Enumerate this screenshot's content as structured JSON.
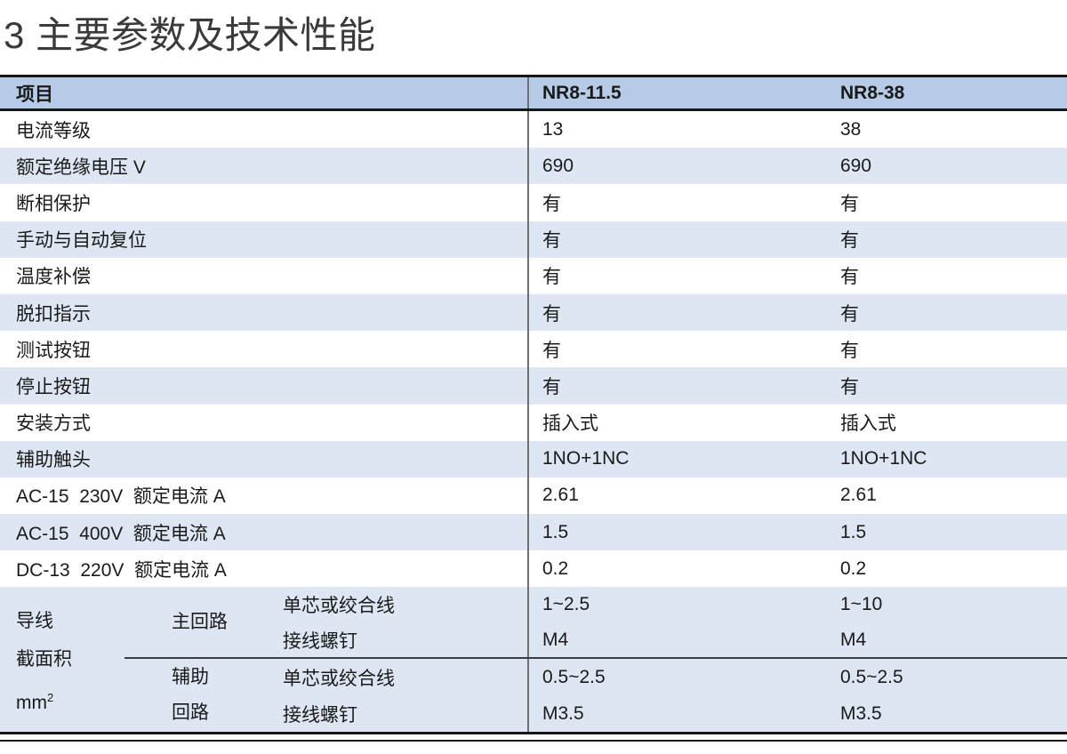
{
  "page": {
    "title": "3 主要参数及技术性能"
  },
  "table": {
    "header": {
      "item": "项目",
      "col1": "NR8-11.5",
      "col2": "NR8-38"
    },
    "rows": [
      {
        "label": "电流等级",
        "v1": "13",
        "v2": "38"
      },
      {
        "label": "额定绝缘电压 V",
        "v1": "690",
        "v2": "690"
      },
      {
        "label": "断相保护",
        "v1": "有",
        "v2": "有"
      },
      {
        "label": "手动与自动复位",
        "v1": "有",
        "v2": "有"
      },
      {
        "label": "温度补偿",
        "v1": "有",
        "v2": "有"
      },
      {
        "label": "脱扣指示",
        "v1": "有",
        "v2": "有"
      },
      {
        "label": "测试按钮",
        "v1": "有",
        "v2": "有"
      },
      {
        "label": "停止按钮",
        "v1": "有",
        "v2": "有"
      },
      {
        "label": "安装方式",
        "v1": "插入式",
        "v2": "插入式"
      },
      {
        "label": "辅助触头",
        "v1": "1NO+1NC",
        "v2": "1NO+1NC"
      },
      {
        "label": "AC-15  230V  额定电流 A",
        "v1": "2.61",
        "v2": "2.61"
      },
      {
        "label": "AC-15  400V  额定电流 A",
        "v1": "1.5",
        "v2": "1.5"
      },
      {
        "label": "DC-13  220V  额定电流 A",
        "v1": "0.2",
        "v2": "0.2"
      }
    ],
    "wire": {
      "label_line1": "导线",
      "label_line2": "截面积",
      "unit_base": "mm",
      "unit_sup": "2",
      "groups": [
        {
          "circuit_line1": "主回路",
          "circuit_line2": "",
          "rows": [
            {
              "label": "单芯或绞合线",
              "v1": "1~2.5",
              "v2": "1~10"
            },
            {
              "label": "接线螺钉",
              "v1": "M4",
              "v2": "M4"
            }
          ]
        },
        {
          "circuit_line1": "辅助",
          "circuit_line2": "回路",
          "rows": [
            {
              "label": "单芯或绞合线",
              "v1": "0.5~2.5",
              "v2": "0.5~2.5"
            },
            {
              "label": "接线螺钉",
              "v1": "M3.5",
              "v2": "M3.5"
            }
          ]
        }
      ]
    },
    "colors": {
      "header_bg": "#b5cbe7",
      "alt_row_bg": "#dde6f2",
      "border_dark": "#161616",
      "divider_gray": "#6f6f6f",
      "sub_divider": "#3d3d3d",
      "title_color": "#3a3a3a",
      "text_color": "#1a1a1a"
    }
  }
}
